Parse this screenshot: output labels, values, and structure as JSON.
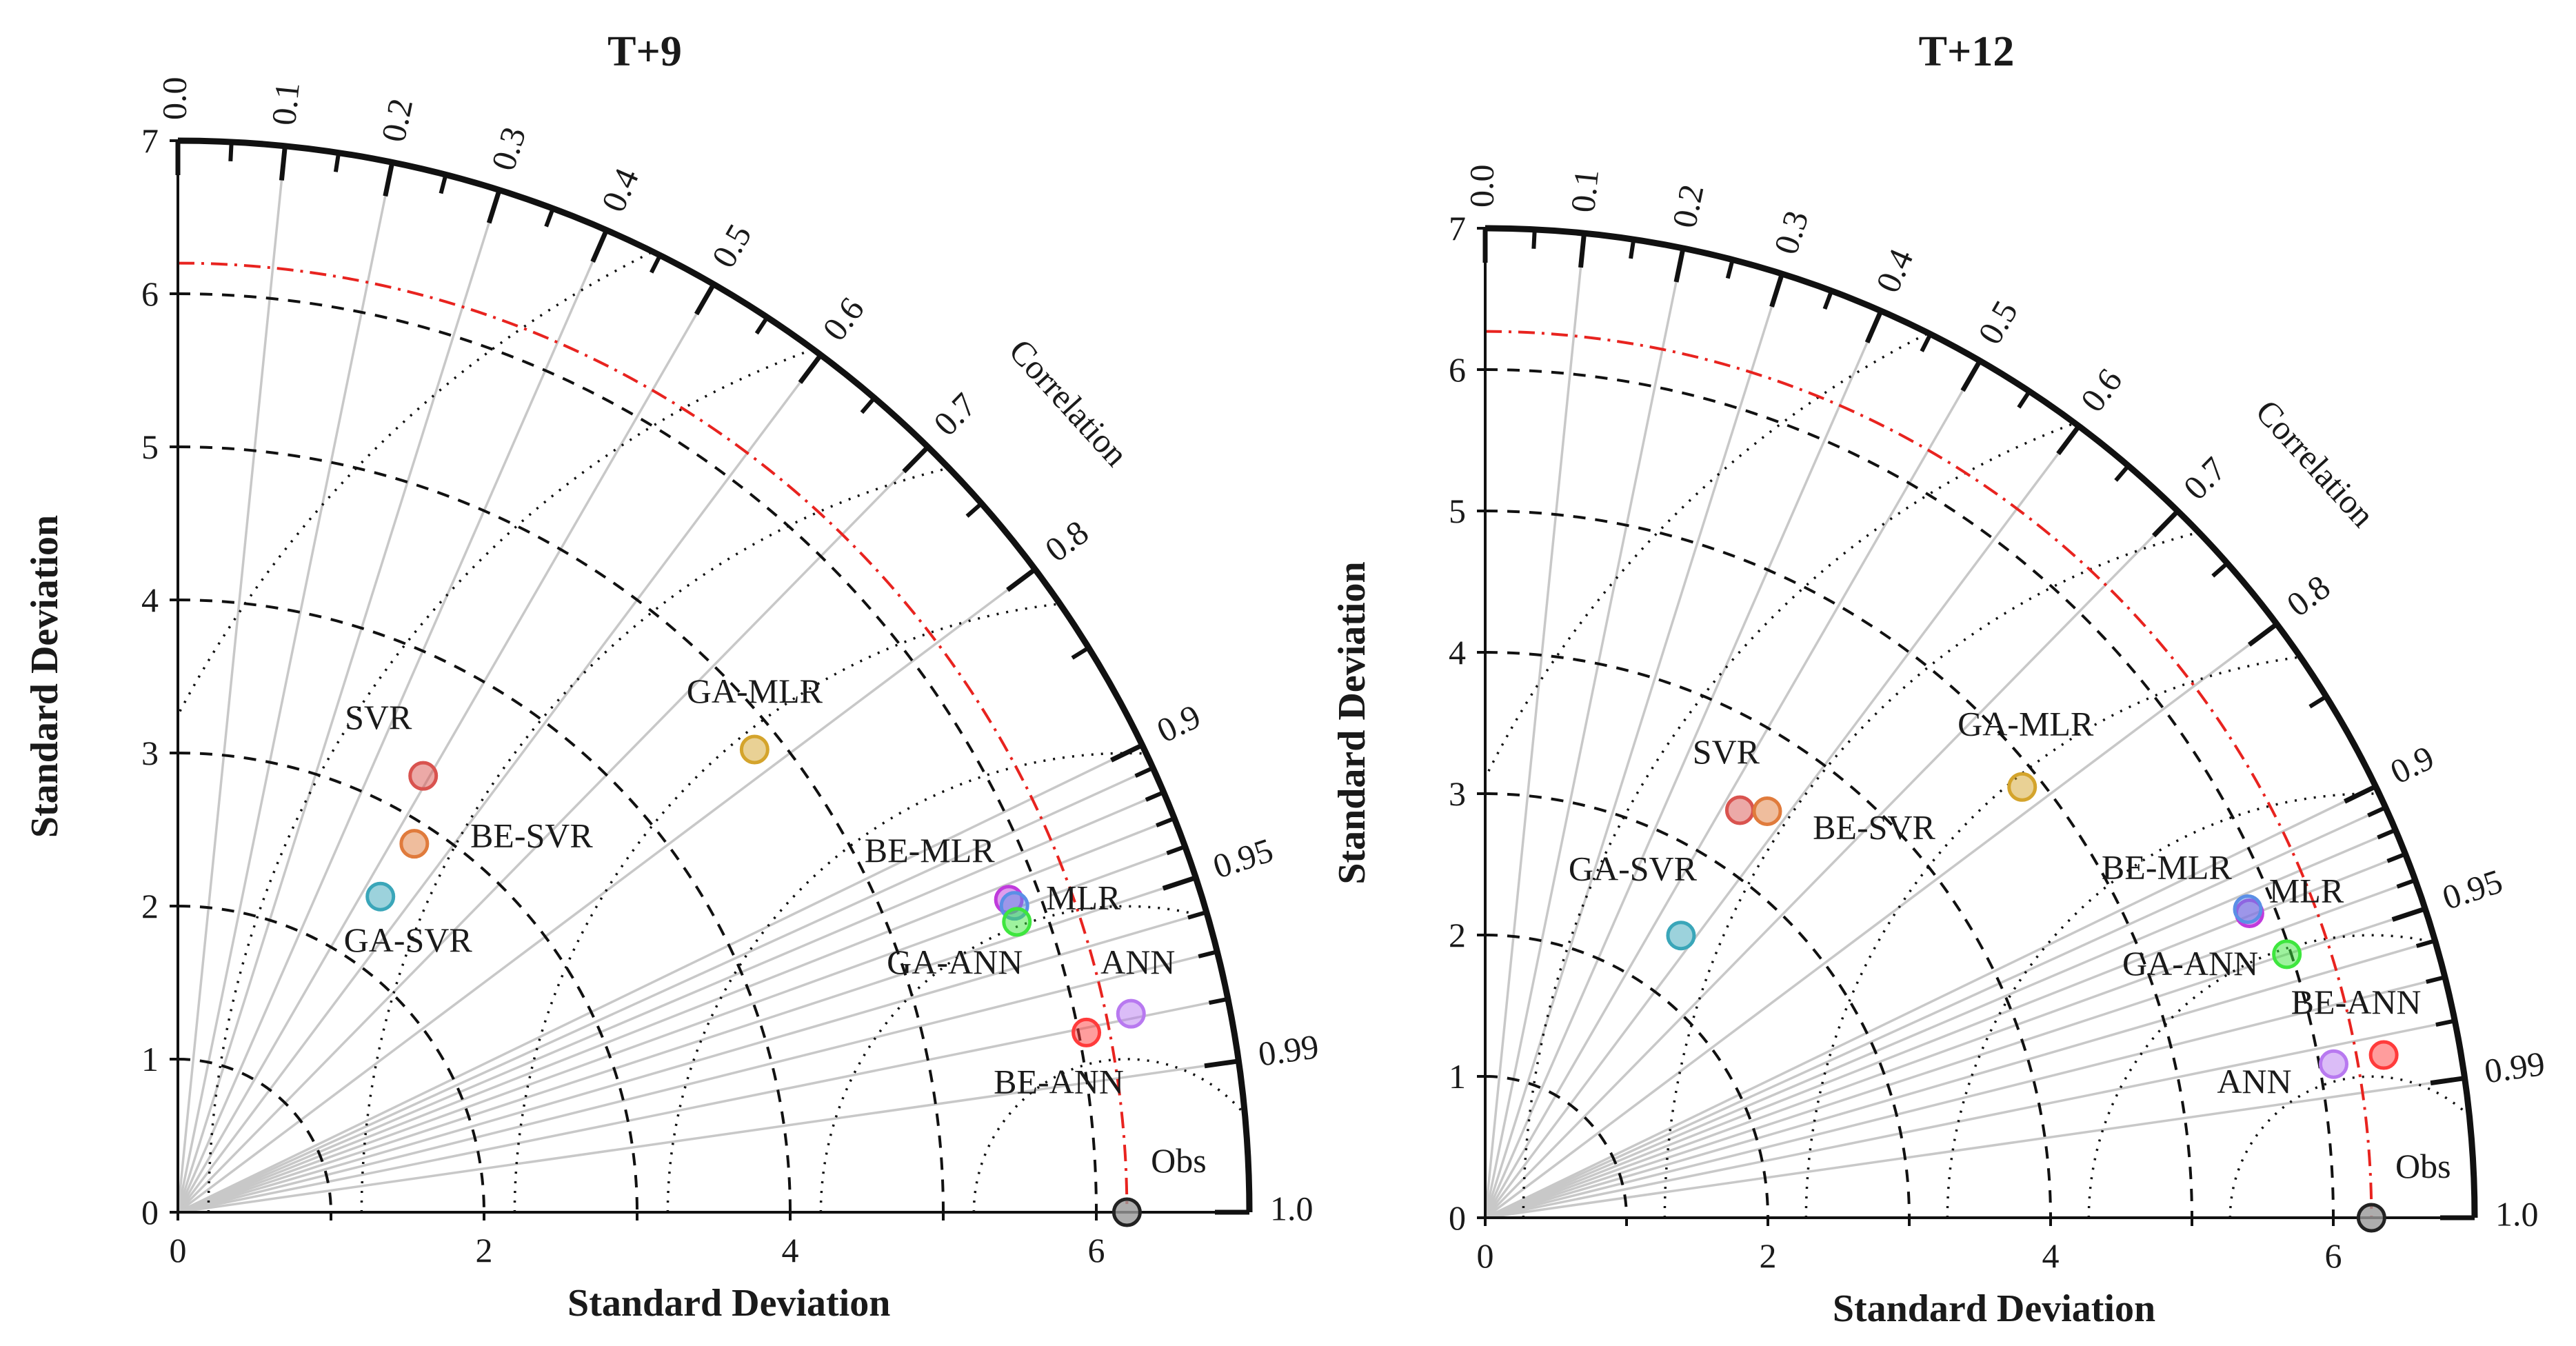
{
  "chart_data": [
    {
      "type": "taylor-diagram",
      "title": "T+9",
      "xlabel": "Standard Deviation",
      "ylabel": "Standard Deviation",
      "correlation_label": "Correlation",
      "std_ticks": [
        "0",
        "2",
        "4",
        "6"
      ],
      "std_ticks_y": [
        "0",
        "1",
        "2",
        "3",
        "4",
        "5",
        "6",
        "7"
      ],
      "corr_tick_labels": [
        "0.0",
        "0.1",
        "0.2",
        "0.3",
        "0.4",
        "0.5",
        "0.6",
        "0.7",
        "0.8",
        "0.9",
        "0.95",
        "0.99",
        "1.0"
      ],
      "std_max": 7,
      "obs_std": 6.2,
      "grid": true,
      "points": [
        {
          "name": "SVR",
          "std": 3.27,
          "corr": 0.49,
          "color": "#d9534f"
        },
        {
          "name": "BE-SVR",
          "std": 2.86,
          "corr": 0.54,
          "color": "#e07b3c"
        },
        {
          "name": "GA-SVR",
          "std": 2.45,
          "corr": 0.54,
          "color": "#3aa6b9"
        },
        {
          "name": "GA-MLR",
          "std": 4.83,
          "corr": 0.78,
          "color": "#d4a42c"
        },
        {
          "name": "BE-MLR",
          "std": 5.8,
          "corr": 0.936,
          "color": "#c03bdc"
        },
        {
          "name": "MLR",
          "std": 5.82,
          "corr": 0.939,
          "color": "#5b8fe6"
        },
        {
          "name": "GA-ANN",
          "std": 5.8,
          "corr": 0.945,
          "color": "#3ee63e"
        },
        {
          "name": "ANN",
          "std": 6.36,
          "corr": 0.979,
          "color": "#b879f0"
        },
        {
          "name": "BE-ANN",
          "std": 6.05,
          "corr": 0.981,
          "color": "#ff3b3b"
        },
        {
          "name": "Obs",
          "std": 6.2,
          "corr": 1.0,
          "color": "#888888"
        }
      ]
    },
    {
      "type": "taylor-diagram",
      "title": "T+12",
      "xlabel": "Standard Deviation",
      "ylabel": "Standard Deviation",
      "correlation_label": "Correlation",
      "std_ticks": [
        "0",
        "2",
        "4",
        "6"
      ],
      "std_ticks_y": [
        "0",
        "1",
        "2",
        "3",
        "4",
        "5",
        "6",
        "7"
      ],
      "corr_tick_labels": [
        "0.0",
        "0.1",
        "0.2",
        "0.3",
        "0.4",
        "0.5",
        "0.6",
        "0.7",
        "0.8",
        "0.9",
        "0.95",
        "0.99",
        "1.0"
      ],
      "std_max": 7,
      "obs_std": 6.27,
      "grid": true,
      "points": [
        {
          "name": "SVR",
          "std": 3.4,
          "corr": 0.53,
          "color": "#d9534f"
        },
        {
          "name": "BE-SVR",
          "std": 3.5,
          "corr": 0.57,
          "color": "#e07b3c"
        },
        {
          "name": "GA-SVR",
          "std": 2.43,
          "corr": 0.57,
          "color": "#3aa6b9"
        },
        {
          "name": "GA-MLR",
          "std": 4.87,
          "corr": 0.78,
          "color": "#d4a42c"
        },
        {
          "name": "BE-MLR",
          "std": 5.82,
          "corr": 0.929,
          "color": "#c03bdc"
        },
        {
          "name": "MLR",
          "std": 5.82,
          "corr": 0.927,
          "color": "#5b8fe6"
        },
        {
          "name": "GA-ANN",
          "std": 5.97,
          "corr": 0.95,
          "color": "#3ee63e"
        },
        {
          "name": "BE-ANN",
          "std": 6.46,
          "corr": 0.984,
          "color": "#ff3b3b"
        },
        {
          "name": "ANN",
          "std": 6.1,
          "corr": 0.984,
          "color": "#b879f0"
        },
        {
          "name": "Obs",
          "std": 6.27,
          "corr": 1.0,
          "color": "#888888"
        }
      ]
    }
  ]
}
